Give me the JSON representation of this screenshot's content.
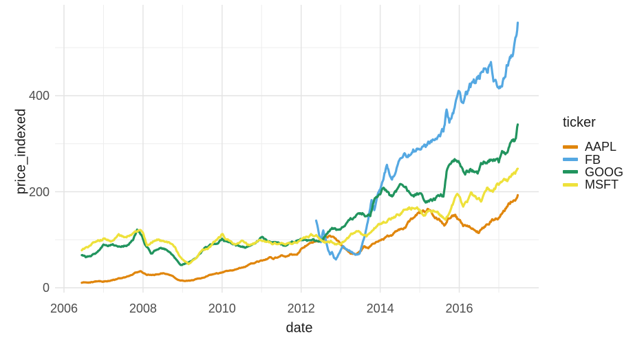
{
  "chart_data": {
    "type": "line",
    "title": "",
    "xlabel": "date",
    "ylabel": "price_indexed",
    "legend_title": "ticker",
    "legend_position": "right",
    "background": "#FFFFFF",
    "grid_color_major": "#E4E4E4",
    "grid_color_minor": "#EDEDED",
    "tick_text_color": "#4D4D4D",
    "title_text_color": "#1B1B1B",
    "x_ticks": [
      2006,
      2008,
      2010,
      2012,
      2014,
      2016
    ],
    "x_tick_labels": [
      "2006",
      "2008",
      "2010",
      "2012",
      "2014",
      "2016"
    ],
    "x_minor_ticks": [
      2007,
      2009,
      2011,
      2013,
      2015,
      2017
    ],
    "y_ticks": [
      0,
      200,
      400
    ],
    "y_tick_labels": [
      "0",
      "200",
      "400"
    ],
    "y_minor_ticks": [
      100,
      300,
      500
    ],
    "x_range_years": [
      2005.9,
      2018.0
    ],
    "y_range": [
      -10,
      590
    ],
    "series": [
      {
        "name": "AAPL",
        "color": "#E0860D",
        "points": [
          [
            2006.45,
            11
          ],
          [
            2006.6,
            12
          ],
          [
            2006.8,
            13
          ],
          [
            2007.0,
            14
          ],
          [
            2007.2,
            16
          ],
          [
            2007.4,
            19
          ],
          [
            2007.55,
            21
          ],
          [
            2007.7,
            25
          ],
          [
            2007.8,
            30
          ],
          [
            2007.95,
            34
          ],
          [
            2008.1,
            28
          ],
          [
            2008.3,
            28
          ],
          [
            2008.5,
            31
          ],
          [
            2008.7,
            26
          ],
          [
            2008.9,
            17
          ],
          [
            2009.05,
            15
          ],
          [
            2009.2,
            16
          ],
          [
            2009.35,
            18
          ],
          [
            2009.5,
            21
          ],
          [
            2009.75,
            27
          ],
          [
            2010.0,
            32
          ],
          [
            2010.25,
            37
          ],
          [
            2010.5,
            42
          ],
          [
            2010.75,
            50
          ],
          [
            2011.0,
            57
          ],
          [
            2011.2,
            63
          ],
          [
            2011.3,
            59
          ],
          [
            2011.5,
            68
          ],
          [
            2011.6,
            64
          ],
          [
            2011.75,
            71
          ],
          [
            2011.9,
            68
          ],
          [
            2012.0,
            78
          ],
          [
            2012.15,
            90
          ],
          [
            2012.3,
            96
          ],
          [
            2012.45,
            99
          ],
          [
            2012.6,
            104
          ],
          [
            2012.7,
            108
          ],
          [
            2012.8,
            104
          ],
          [
            2012.9,
            97
          ],
          [
            2013.0,
            90
          ],
          [
            2013.1,
            80
          ],
          [
            2013.25,
            73
          ],
          [
            2013.38,
            68
          ],
          [
            2013.5,
            75
          ],
          [
            2013.6,
            87
          ],
          [
            2013.7,
            83
          ],
          [
            2013.85,
            94
          ],
          [
            2014.0,
            102
          ],
          [
            2014.15,
            106
          ],
          [
            2014.3,
            110
          ],
          [
            2014.45,
            118
          ],
          [
            2014.6,
            128
          ],
          [
            2014.75,
            138
          ],
          [
            2014.9,
            147
          ],
          [
            2015.05,
            155
          ],
          [
            2015.2,
            162
          ],
          [
            2015.35,
            155
          ],
          [
            2015.5,
            145
          ],
          [
            2015.62,
            133
          ],
          [
            2015.75,
            148
          ],
          [
            2015.9,
            150
          ],
          [
            2016.0,
            138
          ],
          [
            2016.1,
            128
          ],
          [
            2016.25,
            130
          ],
          [
            2016.4,
            122
          ],
          [
            2016.5,
            116
          ],
          [
            2016.65,
            130
          ],
          [
            2016.8,
            140
          ],
          [
            2016.95,
            147
          ],
          [
            2017.05,
            152
          ],
          [
            2017.15,
            162
          ],
          [
            2017.25,
            173
          ],
          [
            2017.35,
            184
          ],
          [
            2017.48,
            193
          ]
        ]
      },
      {
        "name": "FB",
        "color": "#55A8E2",
        "points": [
          [
            2012.38,
            138
          ],
          [
            2012.44,
            116
          ],
          [
            2012.5,
            95
          ],
          [
            2012.56,
            120
          ],
          [
            2012.62,
            100
          ],
          [
            2012.68,
            80
          ],
          [
            2012.73,
            70
          ],
          [
            2012.78,
            75
          ],
          [
            2012.83,
            62
          ],
          [
            2012.88,
            58
          ],
          [
            2012.95,
            68
          ],
          [
            2013.05,
            84
          ],
          [
            2013.15,
            80
          ],
          [
            2013.25,
            76
          ],
          [
            2013.38,
            71
          ],
          [
            2013.48,
            73
          ],
          [
            2013.56,
            95
          ],
          [
            2013.62,
            112
          ],
          [
            2013.7,
            145
          ],
          [
            2013.78,
            180
          ],
          [
            2013.85,
            165
          ],
          [
            2013.95,
            200
          ],
          [
            2014.05,
            220
          ],
          [
            2014.17,
            260
          ],
          [
            2014.3,
            225
          ],
          [
            2014.4,
            240
          ],
          [
            2014.55,
            273
          ],
          [
            2014.7,
            282
          ],
          [
            2014.85,
            292
          ],
          [
            2015.0,
            303
          ],
          [
            2015.15,
            295
          ],
          [
            2015.3,
            308
          ],
          [
            2015.45,
            316
          ],
          [
            2015.6,
            330
          ],
          [
            2015.68,
            366
          ],
          [
            2015.75,
            347
          ],
          [
            2015.9,
            382
          ],
          [
            2016.0,
            398
          ],
          [
            2016.1,
            376
          ],
          [
            2016.25,
            406
          ],
          [
            2016.4,
            420
          ],
          [
            2016.5,
            436
          ],
          [
            2016.62,
            465
          ],
          [
            2016.72,
            458
          ],
          [
            2016.8,
            480
          ],
          [
            2016.9,
            440
          ],
          [
            2016.97,
            427
          ],
          [
            2017.05,
            433
          ],
          [
            2017.15,
            452
          ],
          [
            2017.25,
            478
          ],
          [
            2017.33,
            492
          ],
          [
            2017.42,
            522
          ],
          [
            2017.48,
            552
          ]
        ]
      },
      {
        "name": "GOOG",
        "color": "#21945E",
        "points": [
          [
            2006.45,
            67
          ],
          [
            2006.55,
            63
          ],
          [
            2006.7,
            67
          ],
          [
            2006.85,
            73
          ],
          [
            2007.0,
            86
          ],
          [
            2007.15,
            88
          ],
          [
            2007.3,
            90
          ],
          [
            2007.45,
            83
          ],
          [
            2007.6,
            90
          ],
          [
            2007.75,
            100
          ],
          [
            2007.85,
            120
          ],
          [
            2007.95,
            108
          ],
          [
            2008.05,
            90
          ],
          [
            2008.2,
            71
          ],
          [
            2008.35,
            80
          ],
          [
            2008.45,
            87
          ],
          [
            2008.6,
            80
          ],
          [
            2008.75,
            68
          ],
          [
            2008.85,
            58
          ],
          [
            2008.95,
            47
          ],
          [
            2009.1,
            52
          ],
          [
            2009.25,
            58
          ],
          [
            2009.4,
            68
          ],
          [
            2009.55,
            80
          ],
          [
            2009.7,
            88
          ],
          [
            2009.85,
            95
          ],
          [
            2010.0,
            102
          ],
          [
            2010.15,
            95
          ],
          [
            2010.3,
            90
          ],
          [
            2010.45,
            88
          ],
          [
            2010.6,
            84
          ],
          [
            2010.75,
            92
          ],
          [
            2010.9,
            98
          ],
          [
            2011.0,
            104
          ],
          [
            2011.15,
            98
          ],
          [
            2011.3,
            94
          ],
          [
            2011.45,
            92
          ],
          [
            2011.6,
            88
          ],
          [
            2011.7,
            92
          ],
          [
            2011.85,
            96
          ],
          [
            2012.0,
            102
          ],
          [
            2012.15,
            98
          ],
          [
            2012.3,
            100
          ],
          [
            2012.45,
            96
          ],
          [
            2012.6,
            106
          ],
          [
            2012.7,
            118
          ],
          [
            2012.78,
            126
          ],
          [
            2012.9,
            120
          ],
          [
            2013.0,
            122
          ],
          [
            2013.15,
            135
          ],
          [
            2013.3,
            142
          ],
          [
            2013.45,
            150
          ],
          [
            2013.55,
            155
          ],
          [
            2013.65,
            152
          ],
          [
            2013.75,
            150
          ],
          [
            2013.85,
            183
          ],
          [
            2014.0,
            195
          ],
          [
            2014.1,
            207
          ],
          [
            2014.25,
            192
          ],
          [
            2014.4,
            198
          ],
          [
            2014.55,
            207
          ],
          [
            2014.7,
            199
          ],
          [
            2014.85,
            186
          ],
          [
            2015.0,
            190
          ],
          [
            2015.15,
            176
          ],
          [
            2015.3,
            183
          ],
          [
            2015.45,
            190
          ],
          [
            2015.6,
            193
          ],
          [
            2015.68,
            241
          ],
          [
            2015.8,
            255
          ],
          [
            2015.9,
            263
          ],
          [
            2016.0,
            252
          ],
          [
            2016.15,
            244
          ],
          [
            2016.3,
            250
          ],
          [
            2016.45,
            234
          ],
          [
            2016.6,
            260
          ],
          [
            2016.75,
            270
          ],
          [
            2016.85,
            277
          ],
          [
            2017.0,
            262
          ],
          [
            2017.1,
            275
          ],
          [
            2017.2,
            280
          ],
          [
            2017.3,
            292
          ],
          [
            2017.4,
            302
          ],
          [
            2017.45,
            322
          ],
          [
            2017.48,
            340
          ]
        ]
      },
      {
        "name": "MSFT",
        "color": "#EEE13B",
        "points": [
          [
            2006.45,
            79
          ],
          [
            2006.6,
            85
          ],
          [
            2006.8,
            97
          ],
          [
            2007.0,
            102
          ],
          [
            2007.2,
            100
          ],
          [
            2007.4,
            108
          ],
          [
            2007.55,
            104
          ],
          [
            2007.7,
            112
          ],
          [
            2007.9,
            122
          ],
          [
            2008.0,
            115
          ],
          [
            2008.1,
            88
          ],
          [
            2008.25,
            97
          ],
          [
            2008.4,
            100
          ],
          [
            2008.55,
            96
          ],
          [
            2008.7,
            90
          ],
          [
            2008.8,
            83
          ],
          [
            2008.9,
            68
          ],
          [
            2009.0,
            58
          ],
          [
            2009.15,
            50
          ],
          [
            2009.3,
            60
          ],
          [
            2009.5,
            78
          ],
          [
            2009.7,
            85
          ],
          [
            2009.85,
            98
          ],
          [
            2010.0,
            110
          ],
          [
            2010.15,
            100
          ],
          [
            2010.35,
            89
          ],
          [
            2010.5,
            94
          ],
          [
            2010.65,
            88
          ],
          [
            2010.8,
            92
          ],
          [
            2011.0,
            100
          ],
          [
            2011.15,
            95
          ],
          [
            2011.3,
            92
          ],
          [
            2011.45,
            90
          ],
          [
            2011.6,
            93
          ],
          [
            2011.75,
            91
          ],
          [
            2011.9,
            96
          ],
          [
            2012.05,
            107
          ],
          [
            2012.25,
            110
          ],
          [
            2012.4,
            107
          ],
          [
            2012.5,
            100
          ],
          [
            2012.6,
            93
          ],
          [
            2012.75,
            96
          ],
          [
            2012.9,
            90
          ],
          [
            2013.0,
            92
          ],
          [
            2013.15,
            100
          ],
          [
            2013.3,
            112
          ],
          [
            2013.45,
            115
          ],
          [
            2013.55,
            108
          ],
          [
            2013.65,
            104
          ],
          [
            2013.8,
            122
          ],
          [
            2013.9,
            128
          ],
          [
            2014.0,
            133
          ],
          [
            2014.15,
            138
          ],
          [
            2014.3,
            147
          ],
          [
            2014.45,
            155
          ],
          [
            2014.6,
            163
          ],
          [
            2014.75,
            168
          ],
          [
            2014.9,
            172
          ],
          [
            2015.0,
            165
          ],
          [
            2015.1,
            155
          ],
          [
            2015.25,
            160
          ],
          [
            2015.4,
            162
          ],
          [
            2015.55,
            150
          ],
          [
            2015.65,
            140
          ],
          [
            2015.8,
            165
          ],
          [
            2015.9,
            185
          ],
          [
            2016.0,
            190
          ],
          [
            2016.1,
            170
          ],
          [
            2016.2,
            175
          ],
          [
            2016.3,
            190
          ],
          [
            2016.45,
            180
          ],
          [
            2016.55,
            176
          ],
          [
            2016.7,
            200
          ],
          [
            2016.85,
            205
          ],
          [
            2017.0,
            218
          ],
          [
            2017.15,
            225
          ],
          [
            2017.3,
            231
          ],
          [
            2017.4,
            238
          ],
          [
            2017.48,
            248
          ]
        ]
      }
    ]
  }
}
